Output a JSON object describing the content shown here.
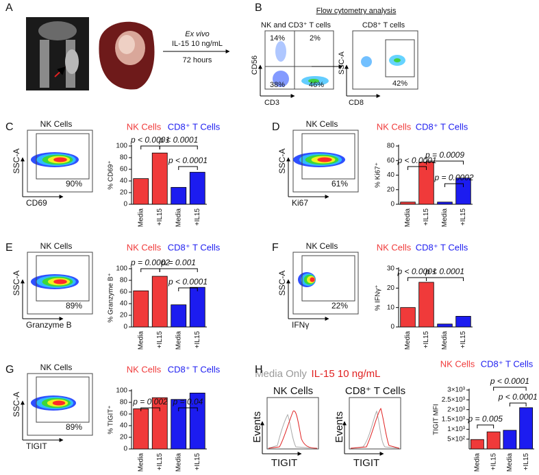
{
  "panel_labels": [
    "A",
    "B",
    "C",
    "D",
    "E",
    "F",
    "G",
    "H"
  ],
  "panel_a": {
    "treatment": [
      "Ex vivo",
      "IL-15 10 ng/mL",
      "72 hours"
    ]
  },
  "panel_b": {
    "title": "Flow cytometry analysis",
    "plots": [
      {
        "title": "NK and CD3⁺ T cells",
        "y_label": "CD56",
        "x_label": "CD3",
        "gates": [
          "14%",
          "2%",
          "38%",
          "46%"
        ]
      },
      {
        "title": "CD8⁺ T cells",
        "y_label": "SSC-A",
        "x_label": "CD8",
        "gates": [
          "42%"
        ]
      }
    ]
  },
  "flow_plots": [
    {
      "title": "NK Cells",
      "y_label": "SSC-A",
      "x_label": "CD69",
      "gate": "90%"
    },
    {
      "title": "NK Cells",
      "y_label": "SSC-A",
      "x_label": "Ki67",
      "gate": "61%"
    },
    {
      "title": "NK Cells",
      "y_label": "SSC-A",
      "x_label": "Granzyme B",
      "gate": "89%"
    },
    {
      "title": "NK Cells",
      "y_label": "SSC-A",
      "x_label": "IFNγ",
      "gate": "22%"
    },
    {
      "title": "NK Cells",
      "y_label": "SSC-A",
      "x_label": "TIGIT",
      "gate": "89%"
    }
  ],
  "panel_h": {
    "legend": [
      "Media Only",
      "IL-15 10 ng/mL"
    ],
    "histograms": [
      {
        "title": "NK Cells",
        "y_label": "Events",
        "x_label": "TIGIT"
      },
      {
        "title": "CD8⁺ T Cells",
        "y_label": "Events",
        "x_label": "TIGIT"
      }
    ]
  },
  "chart_data": [
    {
      "type": "bar",
      "y_label": "% CD69⁺",
      "categories": [
        "Media",
        "+IL15",
        "Media",
        "+IL15"
      ],
      "series": [
        {
          "name": "NK Cells",
          "color": "#f03a3a",
          "values": [
            44,
            88,
            null,
            null
          ]
        },
        {
          "name": "CD8⁺ T Cells",
          "color": "#1c1cf0",
          "values": [
            null,
            null,
            29,
            55
          ]
        }
      ],
      "ylim": [
        0,
        100
      ],
      "yticks": [
        0,
        20,
        40,
        60,
        80,
        100
      ],
      "annotations": [
        "p < 0.0001",
        "p < 0.0001",
        "p < 0.0001"
      ]
    },
    {
      "type": "bar",
      "y_label": "% Ki67⁺",
      "categories": [
        "Media",
        "+IL15",
        "Media",
        "+IL15"
      ],
      "series": [
        {
          "name": "NK Cells",
          "color": "#f03a3a",
          "values": [
            3,
            58,
            null,
            null
          ]
        },
        {
          "name": "CD8⁺ T Cells",
          "color": "#1c1cf0",
          "values": [
            null,
            null,
            3,
            36
          ]
        }
      ],
      "ylim": [
        0,
        80
      ],
      "yticks": [
        0,
        20,
        40,
        60,
        80
      ],
      "annotations": [
        "p < 0.0001",
        "p = 0.0009",
        "p = 0.0002"
      ]
    },
    {
      "type": "bar",
      "y_label": "% Granzyme B⁺",
      "categories": [
        "Media",
        "+IL15",
        "Media",
        "+IL15"
      ],
      "series": [
        {
          "name": "NK Cells",
          "color": "#f03a3a",
          "values": [
            62,
            87,
            null,
            null
          ]
        },
        {
          "name": "CD8⁺ T Cells",
          "color": "#1c1cf0",
          "values": [
            null,
            null,
            38,
            68
          ]
        }
      ],
      "ylim": [
        0,
        100
      ],
      "yticks": [
        0,
        20,
        40,
        60,
        80,
        100
      ],
      "annotations": [
        "p = 0.0002",
        "p = 0.001",
        "p < 0.0001"
      ]
    },
    {
      "type": "bar",
      "y_label": "% IFNγ⁺",
      "categories": [
        "Media",
        "+IL15",
        "Media",
        "+IL15"
      ],
      "series": [
        {
          "name": "NK Cells",
          "color": "#f03a3a",
          "values": [
            10,
            23,
            null,
            null
          ]
        },
        {
          "name": "CD8⁺ T Cells",
          "color": "#1c1cf0",
          "values": [
            null,
            null,
            1.5,
            5.5
          ]
        }
      ],
      "ylim": [
        0,
        30
      ],
      "yticks": [
        0,
        10,
        20,
        30
      ],
      "annotations": [
        "p < 0.0001",
        "p < 0.0001"
      ]
    },
    {
      "type": "bar",
      "y_label": "% TIGIT⁺",
      "categories": [
        "Media",
        "+IL15",
        "Media",
        "+IL15"
      ],
      "series": [
        {
          "name": "NK Cells",
          "color": "#f03a3a",
          "values": [
            69,
            88,
            null,
            null
          ]
        },
        {
          "name": "CD8⁺ T Cells",
          "color": "#1c1cf0",
          "values": [
            null,
            null,
            85,
            96
          ]
        }
      ],
      "ylim": [
        0,
        100
      ],
      "yticks": [
        0,
        20,
        40,
        60,
        80,
        100
      ],
      "annotations": [
        "p = 0.002",
        "p = 0.04"
      ]
    },
    {
      "type": "bar",
      "y_label": "TIGIT MFI",
      "categories": [
        "Media",
        "+IL15",
        "Media",
        "+IL15"
      ],
      "series": [
        {
          "name": "NK Cells",
          "color": "#f03a3a",
          "values": [
            480,
            870,
            null,
            null
          ]
        },
        {
          "name": "CD8⁺ T Cells",
          "color": "#1c1cf0",
          "values": [
            null,
            null,
            950,
            2100
          ]
        }
      ],
      "ylim": [
        0,
        3000
      ],
      "yticks": [
        {
          "value": 500,
          "label": "5×10²"
        },
        {
          "value": 1000,
          "label": "1×10³"
        },
        {
          "value": 1500,
          "label": "1.5×10³"
        },
        {
          "value": 2000,
          "label": "2×10³"
        },
        {
          "value": 2500,
          "label": "2.5×10³"
        },
        {
          "value": 3000,
          "label": "3×10³"
        }
      ],
      "annotations": [
        "p = 0.005",
        "p < 0.0001",
        "p < 0.0001"
      ]
    }
  ]
}
